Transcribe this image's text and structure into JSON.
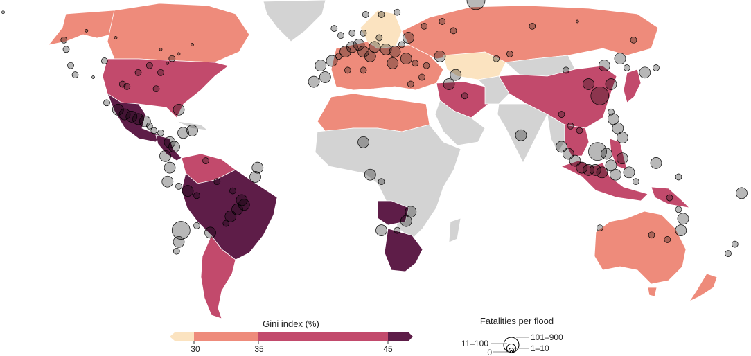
{
  "colors": {
    "no_data": "#d3d3d3",
    "gini_lt30": "#fbe3c0",
    "gini_30_35": "#ee8b7b",
    "gini_35_45": "#c24a6c",
    "gini_gt45": "#5e1d48"
  },
  "gini_legend": {
    "title": "Gini index (%)",
    "ticks": [
      "30",
      "35",
      "45"
    ]
  },
  "size_legend": {
    "title": "Fatalities per flood",
    "labels": [
      "0",
      "1–10",
      "11–100",
      "101–900"
    ]
  },
  "regions": [
    {
      "name": "alaska",
      "class": "gini_30_35"
    },
    {
      "name": "canada",
      "class": "gini_30_35"
    },
    {
      "name": "greenland",
      "class": "no_data"
    },
    {
      "name": "usa",
      "class": "gini_35_45"
    },
    {
      "name": "mexico",
      "class": "gini_gt45"
    },
    {
      "name": "central-america",
      "class": "gini_gt45"
    },
    {
      "name": "south-america-north",
      "class": "gini_35_45"
    },
    {
      "name": "brazil",
      "class": "gini_gt45"
    },
    {
      "name": "argentina-chile",
      "class": "gini_35_45"
    },
    {
      "name": "europe",
      "class": "gini_30_35"
    },
    {
      "name": "scandinavia",
      "class": "gini_lt30"
    },
    {
      "name": "russia",
      "class": "gini_30_35"
    },
    {
      "name": "kazakhstan",
      "class": "gini_lt30"
    },
    {
      "name": "china",
      "class": "gini_35_45"
    },
    {
      "name": "north-africa",
      "class": "gini_30_35"
    },
    {
      "name": "africa",
      "class": "no_data"
    },
    {
      "name": "angola-zambia",
      "class": "gini_gt45"
    },
    {
      "name": "southern-africa",
      "class": "gini_gt45"
    },
    {
      "name": "middle-east",
      "class": "gini_35_45"
    },
    {
      "name": "india",
      "class": "no_data"
    },
    {
      "name": "southeast-asia",
      "class": "gini_35_45"
    },
    {
      "name": "indonesia",
      "class": "gini_35_45"
    },
    {
      "name": "australia",
      "class": "gini_30_35"
    },
    {
      "name": "new-zealand",
      "class": "gini_30_35"
    }
  ],
  "floods": [
    {
      "lon": -150,
      "lat": 61,
      "size": 1
    },
    {
      "lon": -123,
      "lat": 49,
      "size": 2
    },
    {
      "lon": -122,
      "lat": 45,
      "size": 2
    },
    {
      "lon": -120,
      "lat": 38,
      "size": 2
    },
    {
      "lon": -118,
      "lat": 34,
      "size": 2
    },
    {
      "lon": -110,
      "lat": 33,
      "size": 1
    },
    {
      "lon": -105,
      "lat": 40,
      "size": 2
    },
    {
      "lon": -97,
      "lat": 30,
      "size": 2
    },
    {
      "lon": -95,
      "lat": 29,
      "size": 2
    },
    {
      "lon": -90,
      "lat": 35,
      "size": 2
    },
    {
      "lon": -85,
      "lat": 38,
      "size": 2
    },
    {
      "lon": -80,
      "lat": 35,
      "size": 2
    },
    {
      "lon": -77,
      "lat": 39,
      "size": 1
    },
    {
      "lon": -75,
      "lat": 41,
      "size": 2
    },
    {
      "lon": -72,
      "lat": 43,
      "size": 1
    },
    {
      "lon": -82,
      "lat": 28,
      "size": 2
    },
    {
      "lon": -100,
      "lat": 50,
      "size": 1
    },
    {
      "lon": -113,
      "lat": 53,
      "size": 1
    },
    {
      "lon": -80,
      "lat": 45,
      "size": 1
    },
    {
      "lon": -66,
      "lat": 47,
      "size": 1
    },
    {
      "lon": -160,
      "lat": 21,
      "size": 2
    },
    {
      "lon": -104,
      "lat": 22,
      "size": 2
    },
    {
      "lon": -99,
      "lat": 19,
      "size": 3
    },
    {
      "lon": -96,
      "lat": 17,
      "size": 3
    },
    {
      "lon": -93,
      "lat": 16,
      "size": 3
    },
    {
      "lon": -90,
      "lat": 15,
      "size": 3
    },
    {
      "lon": -87,
      "lat": 14,
      "size": 3
    },
    {
      "lon": -85,
      "lat": 12,
      "size": 2
    },
    {
      "lon": -83,
      "lat": 10,
      "size": 2
    },
    {
      "lon": -80,
      "lat": 9,
      "size": 2
    },
    {
      "lon": -72,
      "lat": 19,
      "size": 3
    },
    {
      "lon": -76,
      "lat": 5,
      "size": 3
    },
    {
      "lon": -74,
      "lat": 3,
      "size": 3
    },
    {
      "lon": -78,
      "lat": -1,
      "size": 3
    },
    {
      "lon": -76,
      "lat": -6,
      "size": 3
    },
    {
      "lon": -77,
      "lat": -12,
      "size": 3
    },
    {
      "lon": -72,
      "lat": -14,
      "size": 2
    },
    {
      "lon": -68,
      "lat": -16,
      "size": 3
    },
    {
      "lon": -64,
      "lat": -18,
      "size": 2
    },
    {
      "lon": -60,
      "lat": -3,
      "size": 2
    },
    {
      "lon": -55,
      "lat": -12,
      "size": 2
    },
    {
      "lon": -48,
      "lat": -16,
      "size": 2
    },
    {
      "lon": -44,
      "lat": -20,
      "size": 3
    },
    {
      "lon": -43,
      "lat": -22,
      "size": 3
    },
    {
      "lon": -46,
      "lat": -24,
      "size": 3
    },
    {
      "lon": -49,
      "lat": -27,
      "size": 3
    },
    {
      "lon": -51,
      "lat": -30,
      "size": 2
    },
    {
      "lon": -38,
      "lat": -10,
      "size": 3
    },
    {
      "lon": -37,
      "lat": -6,
      "size": 3
    },
    {
      "lon": -58,
      "lat": -34,
      "size": 3
    },
    {
      "lon": -64,
      "lat": -31,
      "size": 2
    },
    {
      "lon": -71,
      "lat": -33,
      "size": 4
    },
    {
      "lon": -72,
      "lat": -38,
      "size": 3
    },
    {
      "lon": -73,
      "lat": -42,
      "size": 2
    },
    {
      "lon": -70,
      "lat": 9,
      "size": 3
    },
    {
      "lon": -66,
      "lat": 10,
      "size": 3
    },
    {
      "lon": -9,
      "lat": 38,
      "size": 3
    },
    {
      "lon": -4,
      "lat": 40,
      "size": 3
    },
    {
      "lon": -1,
      "lat": 42,
      "size": 2
    },
    {
      "lon": 2,
      "lat": 44,
      "size": 3
    },
    {
      "lon": 5,
      "lat": 46,
      "size": 3
    },
    {
      "lon": 8,
      "lat": 47,
      "size": 3
    },
    {
      "lon": 10,
      "lat": 44,
      "size": 3
    },
    {
      "lon": 13,
      "lat": 42,
      "size": 3
    },
    {
      "lon": 15,
      "lat": 46,
      "size": 3
    },
    {
      "lon": 20,
      "lat": 45,
      "size": 3
    },
    {
      "lon": 24,
      "lat": 44,
      "size": 3
    },
    {
      "lon": 27,
      "lat": 47,
      "size": 2
    },
    {
      "lon": 23,
      "lat": 39,
      "size": 3
    },
    {
      "lon": 29,
      "lat": 41,
      "size": 3
    },
    {
      "lon": 33,
      "lat": 39,
      "size": 2
    },
    {
      "lon": 38,
      "lat": 38,
      "size": 2
    },
    {
      "lon": 30,
      "lat": 50,
      "size": 3
    },
    {
      "lon": 37,
      "lat": 55,
      "size": 2
    },
    {
      "lon": 44,
      "lat": 42,
      "size": 3
    },
    {
      "lon": 0,
      "lat": 51,
      "size": 2
    },
    {
      "lon": -3,
      "lat": 54,
      "size": 2
    },
    {
      "lon": 5,
      "lat": 52,
      "size": 2
    },
    {
      "lon": 10,
      "lat": 52,
      "size": 2
    },
    {
      "lon": 17,
      "lat": 50,
      "size": 2
    },
    {
      "lon": 11,
      "lat": 60,
      "size": 2
    },
    {
      "lon": 18,
      "lat": 60,
      "size": 2
    },
    {
      "lon": 25,
      "lat": 61,
      "size": 2
    },
    {
      "lon": 60,
      "lat": 66,
      "size": 4
    },
    {
      "lon": 45,
      "lat": 57,
      "size": 2
    },
    {
      "lon": 50,
      "lat": 53,
      "size": 2
    },
    {
      "lon": 85,
      "lat": 55,
      "size": 2
    },
    {
      "lon": 105,
      "lat": 57,
      "size": 1
    },
    {
      "lon": 130,
      "lat": 49,
      "size": 2
    },
    {
      "lon": 75,
      "lat": 43,
      "size": 2
    },
    {
      "lon": 69,
      "lat": 41,
      "size": 2
    },
    {
      "lon": 100,
      "lat": 36,
      "size": 2
    },
    {
      "lon": 110,
      "lat": 30,
      "size": 3
    },
    {
      "lon": 115,
      "lat": 25,
      "size": 4
    },
    {
      "lon": 120,
      "lat": 30,
      "size": 3
    },
    {
      "lon": 117,
      "lat": 38,
      "size": 3
    },
    {
      "lon": 124,
      "lat": 41,
      "size": 3
    },
    {
      "lon": 127,
      "lat": 37,
      "size": 2
    },
    {
      "lon": 135,
      "lat": 35,
      "size": 3
    },
    {
      "lon": 140,
      "lat": 37,
      "size": 2
    },
    {
      "lon": 48,
      "lat": 30,
      "size": 3
    },
    {
      "lon": 51,
      "lat": 34,
      "size": 3
    },
    {
      "lon": 36,
      "lat": 33,
      "size": 2
    },
    {
      "lon": 55,
      "lat": 25,
      "size": 2
    },
    {
      "lon": 31,
      "lat": 30,
      "size": 2
    },
    {
      "lon": 10,
      "lat": 36,
      "size": 2
    },
    {
      "lon": 3,
      "lat": 36,
      "size": 2
    },
    {
      "lon": -7,
      "lat": 33,
      "size": 3
    },
    {
      "lon": -12,
      "lat": 31,
      "size": 3
    },
    {
      "lon": 80,
      "lat": 8,
      "size": 3
    },
    {
      "lon": 98,
      "lat": 17,
      "size": 2
    },
    {
      "lon": 102,
      "lat": 12,
      "size": 2
    },
    {
      "lon": 106,
      "lat": 10,
      "size": 2
    },
    {
      "lon": 121,
      "lat": 15,
      "size": 3
    },
    {
      "lon": 123,
      "lat": 11,
      "size": 3
    },
    {
      "lon": 125,
      "lat": 7,
      "size": 3
    },
    {
      "lon": 120,
      "lat": 18,
      "size": 2
    },
    {
      "lon": 98,
      "lat": 3,
      "size": 3
    },
    {
      "lon": 101,
      "lat": 0,
      "size": 3
    },
    {
      "lon": 104,
      "lat": -3,
      "size": 3
    },
    {
      "lon": 107,
      "lat": -6,
      "size": 3
    },
    {
      "lon": 110,
      "lat": -7,
      "size": 3
    },
    {
      "lon": 113,
      "lat": -7,
      "size": 3
    },
    {
      "lon": 116,
      "lat": -8,
      "size": 3
    },
    {
      "lon": 120,
      "lat": -5,
      "size": 3
    },
    {
      "lon": 122,
      "lat": -9,
      "size": 3
    },
    {
      "lon": 114,
      "lat": 1,
      "size": 4
    },
    {
      "lon": 118,
      "lat": 0,
      "size": 3
    },
    {
      "lon": 125,
      "lat": -2,
      "size": 3
    },
    {
      "lon": 128,
      "lat": -8,
      "size": 3
    },
    {
      "lon": 140,
      "lat": -4,
      "size": 3
    },
    {
      "lon": 150,
      "lat": -10,
      "size": 2
    },
    {
      "lon": 115,
      "lat": -32,
      "size": 2
    },
    {
      "lon": 131,
      "lat": -12,
      "size": 2
    },
    {
      "lon": 146,
      "lat": -19,
      "size": 2
    },
    {
      "lon": 150,
      "lat": -24,
      "size": 2
    },
    {
      "lon": 152,
      "lat": -28,
      "size": 3
    },
    {
      "lon": 151,
      "lat": -33,
      "size": 3
    },
    {
      "lon": 145,
      "lat": -37,
      "size": 2
    },
    {
      "lon": 138,
      "lat": -35,
      "size": 2
    },
    {
      "lon": 175,
      "lat": -39,
      "size": 2
    },
    {
      "lon": 172,
      "lat": -43,
      "size": 2
    },
    {
      "lon": 178,
      "lat": -17,
      "size": 3
    },
    {
      "lon": 10,
      "lat": 5,
      "size": 3
    },
    {
      "lon": 13,
      "lat": -9,
      "size": 3
    },
    {
      "lon": 18,
      "lat": -12,
      "size": 2
    },
    {
      "lon": 31,
      "lat": -25,
      "size": 3
    },
    {
      "lon": 29,
      "lat": -29,
      "size": 3
    },
    {
      "lon": 18,
      "lat": -33,
      "size": 3
    },
    {
      "lon": 25,
      "lat": -33,
      "size": 2
    }
  ]
}
